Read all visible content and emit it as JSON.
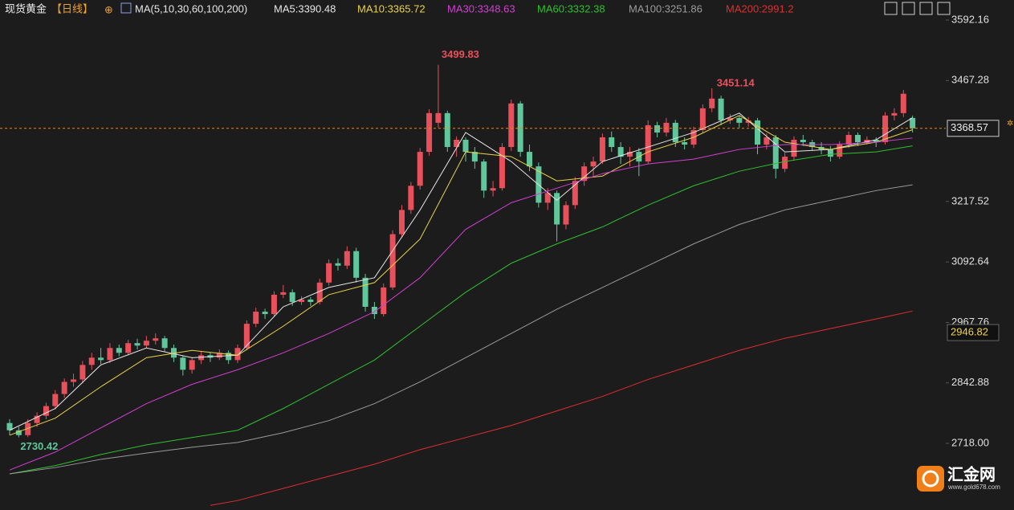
{
  "chart_data": {
    "type": "candlestick",
    "title": "现货黄金",
    "period": "【日线】",
    "indicator": "MA(5,10,30,60,100,200)",
    "up_color": "#e8505b",
    "down_color": "#5fc79b",
    "ylim": [
      2580.4,
      3633.6
    ],
    "yticks": [
      3592.16,
      3467.28,
      3217.52,
      3092.64,
      2967.76,
      2842.88,
      {
        "value": 2718,
        "label": "2718.00"
      }
    ],
    "price_marker": 2946.82,
    "candles": [
      [
        2760,
        2768,
        2735,
        2745
      ],
      [
        2745,
        2752,
        2730.42,
        2735
      ],
      [
        2735,
        2768,
        2731,
        2760
      ],
      [
        2760,
        2782,
        2752,
        2775
      ],
      [
        2775,
        2802,
        2768,
        2795
      ],
      [
        2795,
        2828,
        2788,
        2820
      ],
      [
        2820,
        2852,
        2812,
        2845
      ],
      [
        2845,
        2862,
        2835,
        2850
      ],
      [
        2850,
        2888,
        2842,
        2880
      ],
      [
        2880,
        2905,
        2870,
        2895
      ],
      [
        2895,
        2915,
        2882,
        2890
      ],
      [
        2890,
        2925,
        2884,
        2915
      ],
      [
        2915,
        2922,
        2898,
        2905
      ],
      [
        2905,
        2932,
        2900,
        2925
      ],
      [
        2925,
        2934,
        2912,
        2920
      ],
      [
        2920,
        2940,
        2915,
        2930
      ],
      [
        2930,
        2945,
        2922,
        2935
      ],
      [
        2935,
        2940,
        2908,
        2915
      ],
      [
        2915,
        2922,
        2886,
        2895
      ],
      [
        2895,
        2900,
        2858,
        2870
      ],
      [
        2870,
        2896,
        2862,
        2890
      ],
      [
        2890,
        2908,
        2882,
        2900
      ],
      [
        2900,
        2906,
        2886,
        2895
      ],
      [
        2895,
        2912,
        2890,
        2905
      ],
      [
        2905,
        2910,
        2882,
        2890
      ],
      [
        2890,
        2922,
        2884,
        2915
      ],
      [
        2915,
        2972,
        2910,
        2965
      ],
      [
        2965,
        2998,
        2958,
        2990
      ],
      [
        2990,
        2996,
        2975,
        2985
      ],
      [
        2985,
        3032,
        2980,
        3025
      ],
      [
        3025,
        3045,
        3018,
        3030
      ],
      [
        3030,
        3036,
        3002,
        3010
      ],
      [
        3010,
        3022,
        3004,
        3015
      ],
      [
        3015,
        3020,
        3002,
        3010
      ],
      [
        3010,
        3058,
        3005,
        3050
      ],
      [
        3050,
        3098,
        3044,
        3090
      ],
      [
        3090,
        3100,
        3075,
        3085
      ],
      [
        3085,
        3125,
        3078,
        3115
      ],
      [
        3115,
        3122,
        3050,
        3060
      ],
      [
        3060,
        3068,
        2990,
        3000
      ],
      [
        3000,
        3010,
        2975,
        2985
      ],
      [
        2985,
        3048,
        2980,
        3040
      ],
      [
        3040,
        3158,
        3035,
        3150
      ],
      [
        3150,
        3210,
        3142,
        3200
      ],
      [
        3200,
        3258,
        3192,
        3250
      ],
      [
        3250,
        3328,
        3242,
        3320
      ],
      [
        3320,
        3408,
        3312,
        3400
      ],
      [
        3380,
        3499.83,
        3370,
        3400
      ],
      [
        3400,
        3405,
        3320,
        3330
      ],
      [
        3330,
        3352,
        3310,
        3345
      ],
      [
        3345,
        3350,
        3300,
        3320
      ],
      [
        3320,
        3330,
        3285,
        3300
      ],
      [
        3300,
        3305,
        3225,
        3240
      ],
      [
        3240,
        3260,
        3228,
        3245
      ],
      [
        3245,
        3338,
        3240,
        3330
      ],
      [
        3330,
        3428,
        3322,
        3420
      ],
      [
        3420,
        3425,
        3310,
        3320
      ],
      [
        3320,
        3335,
        3280,
        3290
      ],
      [
        3290,
        3298,
        3205,
        3215
      ],
      [
        3215,
        3245,
        3200,
        3235
      ],
      [
        3235,
        3240,
        3135,
        3170
      ],
      [
        3170,
        3218,
        3160,
        3210
      ],
      [
        3210,
        3268,
        3202,
        3260
      ],
      [
        3260,
        3298,
        3250,
        3290
      ],
      [
        3290,
        3310,
        3270,
        3300
      ],
      [
        3300,
        3358,
        3295,
        3350
      ],
      [
        3350,
        3362,
        3320,
        3330
      ],
      [
        3330,
        3340,
        3295,
        3310
      ],
      [
        3310,
        3330,
        3290,
        3320
      ],
      [
        3320,
        3328,
        3270,
        3300
      ],
      [
        3300,
        3385,
        3295,
        3375
      ],
      [
        3375,
        3382,
        3350,
        3360
      ],
      [
        3360,
        3390,
        3352,
        3380
      ],
      [
        3380,
        3386,
        3330,
        3340
      ],
      [
        3340,
        3350,
        3325,
        3335
      ],
      [
        3335,
        3372,
        3328,
        3365
      ],
      [
        3365,
        3418,
        3358,
        3410
      ],
      [
        3410,
        3451.14,
        3402,
        3430
      ],
      [
        3430,
        3436,
        3375,
        3385
      ],
      [
        3385,
        3398,
        3378,
        3390
      ],
      [
        3390,
        3395,
        3370,
        3380
      ],
      [
        3380,
        3392,
        3372,
        3385
      ],
      [
        3385,
        3390,
        3315,
        3335
      ],
      [
        3335,
        3358,
        3325,
        3350
      ],
      [
        3350,
        3355,
        3265,
        3285
      ],
      [
        3285,
        3318,
        3278,
        3310
      ],
      [
        3310,
        3352,
        3302,
        3345
      ],
      [
        3345,
        3355,
        3332,
        3340
      ],
      [
        3340,
        3345,
        3322,
        3330
      ],
      [
        3330,
        3340,
        3315,
        3325
      ],
      [
        3325,
        3332,
        3300,
        3310
      ],
      [
        3310,
        3342,
        3305,
        3335
      ],
      [
        3335,
        3362,
        3328,
        3355
      ],
      [
        3355,
        3360,
        3332,
        3340
      ],
      [
        3340,
        3352,
        3335,
        3345
      ],
      [
        3345,
        3350,
        3330,
        3340
      ],
      [
        3340,
        3402,
        3335,
        3395
      ],
      [
        3395,
        3410,
        3385,
        3400
      ],
      [
        3400,
        3448,
        3392,
        3440
      ],
      [
        3390,
        3395,
        3360,
        3368.57
      ]
    ],
    "lines": [
      {
        "name": "MA5",
        "label": "MA5:3390.48",
        "color": "#e6e6e6",
        "x": [
          0,
          5,
          10,
          15,
          20,
          25,
          30,
          35,
          40,
          45,
          50,
          55,
          60,
          65,
          70,
          75,
          80,
          85,
          90,
          95,
          99
        ],
        "values": [
          2745,
          2790,
          2880,
          2915,
          2895,
          2900,
          3000,
          3040,
          3060,
          3200,
          3360,
          3300,
          3220,
          3300,
          3330,
          3360,
          3400,
          3320,
          3325,
          3345,
          3390.48
        ]
      },
      {
        "name": "MA10",
        "label": "MA10:3365.72",
        "color": "#e8d24a",
        "x": [
          0,
          5,
          10,
          15,
          20,
          25,
          30,
          35,
          40,
          45,
          50,
          55,
          60,
          65,
          70,
          75,
          80,
          85,
          90,
          95,
          99
        ],
        "values": [
          2735,
          2770,
          2835,
          2895,
          2910,
          2900,
          2960,
          3025,
          3050,
          3140,
          3320,
          3310,
          3260,
          3270,
          3320,
          3350,
          3395,
          3340,
          3325,
          3340,
          3365.72
        ]
      },
      {
        "name": "MA30",
        "label": "MA30:3348.63",
        "color": "#d23fd2",
        "x": [
          0,
          5,
          10,
          15,
          20,
          25,
          30,
          35,
          40,
          45,
          50,
          55,
          60,
          65,
          70,
          75,
          80,
          85,
          90,
          95,
          99
        ],
        "values": [
          2663,
          2700,
          2750,
          2800,
          2840,
          2870,
          2905,
          2945,
          2990,
          3060,
          3160,
          3215,
          3245,
          3275,
          3295,
          3305,
          3325,
          3335,
          3335,
          3340,
          3348.63
        ]
      },
      {
        "name": "MA60",
        "label": "MA60:3332.38",
        "color": "#2fc02f",
        "x": [
          0,
          5,
          10,
          15,
          20,
          25,
          30,
          35,
          40,
          45,
          50,
          55,
          60,
          65,
          70,
          75,
          80,
          85,
          90,
          95,
          99
        ],
        "values": [
          2655,
          2672,
          2695,
          2715,
          2730,
          2745,
          2790,
          2840,
          2890,
          2960,
          3030,
          3090,
          3130,
          3165,
          3210,
          3250,
          3280,
          3300,
          3315,
          3320,
          3332.38
        ]
      },
      {
        "name": "MA100",
        "label": "MA100:3251.86",
        "color": "#9a9a9a",
        "x": [
          0,
          5,
          10,
          15,
          20,
          25,
          30,
          35,
          40,
          45,
          50,
          55,
          60,
          65,
          70,
          75,
          80,
          85,
          90,
          95,
          99
        ],
        "values": [
          2655,
          2668,
          2685,
          2698,
          2710,
          2720,
          2740,
          2765,
          2800,
          2845,
          2895,
          2945,
          2995,
          3040,
          3085,
          3130,
          3170,
          3200,
          3220,
          3240,
          3251.86
        ]
      },
      {
        "name": "MA200",
        "label": "MA200:2991.2",
        "color": "#e02e2e",
        "x": [
          22,
          25,
          30,
          35,
          40,
          45,
          50,
          55,
          60,
          65,
          70,
          75,
          80,
          85,
          90,
          95,
          99
        ],
        "values": [
          2590,
          2600,
          2625,
          2650,
          2675,
          2705,
          2730,
          2755,
          2785,
          2815,
          2850,
          2880,
          2910,
          2935,
          2955,
          2975,
          2991.2
        ]
      }
    ]
  },
  "watermark": {
    "name": "汇金网",
    "url": "www.gold678.com"
  }
}
